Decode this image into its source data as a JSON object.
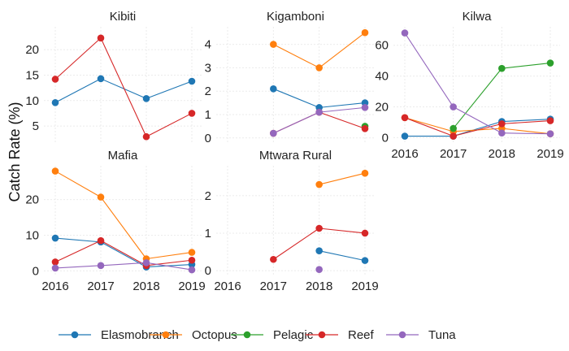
{
  "chart_data": {
    "type": "line",
    "layout": "facet-wrap",
    "ylabel": "Catch Rate (%)",
    "xlabel": "",
    "years": [
      2016,
      2017,
      2018,
      2019
    ],
    "grid": true,
    "legend_position": "bottom",
    "colors": {
      "Elasmobranch": "#1f77b4",
      "Octopus": "#ff7f0e",
      "Pelagic": "#2ca02c",
      "Reef": "#d62728",
      "Tuna": "#9467bd"
    },
    "legend": [
      "Elasmobranch",
      "Octopus",
      "Pelagic",
      "Reef",
      "Tuna"
    ],
    "panels": [
      {
        "title": "Kibiti",
        "ylim": [
          1.5,
          24.5
        ],
        "yticks": [
          5,
          10,
          15,
          20
        ],
        "series": [
          {
            "name": "Elasmobranch",
            "x": [
              2016,
              2017,
              2018,
              2019
            ],
            "y": [
              9.6,
              14.3,
              10.4,
              13.8
            ]
          },
          {
            "name": "Reef",
            "x": [
              2016,
              2017,
              2018,
              2019
            ],
            "y": [
              14.2,
              22.3,
              2.9,
              7.5
            ]
          }
        ]
      },
      {
        "title": "Kigamboni",
        "ylim": [
          -0.25,
          4.75
        ],
        "yticks": [
          0,
          1,
          2,
          3,
          4
        ],
        "series": [
          {
            "name": "Elasmobranch",
            "x": [
              2016,
              2017,
              2018,
              2019
            ],
            "y": [
              null,
              2.1,
              1.3,
              1.5
            ]
          },
          {
            "name": "Octopus",
            "x": [
              2016,
              2017,
              2018,
              2019
            ],
            "y": [
              null,
              4.0,
              3.0,
              4.5
            ]
          },
          {
            "name": "Pelagic",
            "x": [
              2016,
              2017,
              2018,
              2019
            ],
            "y": [
              null,
              null,
              null,
              0.5
            ]
          },
          {
            "name": "Reef",
            "x": [
              2016,
              2017,
              2018,
              2019
            ],
            "y": [
              null,
              0.2,
              1.1,
              0.4
            ]
          },
          {
            "name": "Tuna",
            "x": [
              2016,
              2017,
              2018,
              2019
            ],
            "y": [
              null,
              0.2,
              1.1,
              1.3
            ]
          }
        ]
      },
      {
        "title": "Kilwa",
        "ylim": [
          -4,
          72
        ],
        "yticks": [
          0,
          20,
          40,
          60
        ],
        "series": [
          {
            "name": "Elasmobranch",
            "x": [
              2016,
              2017,
              2018,
              2019
            ],
            "y": [
              1,
              1,
              10.5,
              12
            ]
          },
          {
            "name": "Octopus",
            "x": [
              2016,
              2017,
              2018,
              2019
            ],
            "y": [
              13,
              4,
              6,
              2.5
            ]
          },
          {
            "name": "Pelagic",
            "x": [
              2016,
              2017,
              2018,
              2019
            ],
            "y": [
              null,
              6,
              45,
              48.5
            ]
          },
          {
            "name": "Reef",
            "x": [
              2016,
              2017,
              2018,
              2019
            ],
            "y": [
              13,
              1,
              9,
              11
            ]
          },
          {
            "name": "Tuna",
            "x": [
              2016,
              2017,
              2018,
              2019
            ],
            "y": [
              68,
              20,
              3,
              2.5
            ]
          }
        ]
      },
      {
        "title": "Mafia",
        "ylim": [
          -1.5,
          29.5
        ],
        "yticks": [
          0,
          10,
          20
        ],
        "series": [
          {
            "name": "Elasmobranch",
            "x": [
              2016,
              2017,
              2018,
              2019
            ],
            "y": [
              9.2,
              8.1,
              1.1,
              1.8
            ]
          },
          {
            "name": "Octopus",
            "x": [
              2016,
              2017,
              2018,
              2019
            ],
            "y": [
              28,
              20.7,
              3.4,
              5.2
            ]
          },
          {
            "name": "Reef",
            "x": [
              2016,
              2017,
              2018,
              2019
            ],
            "y": [
              2.5,
              8.5,
              1.5,
              3
            ]
          },
          {
            "name": "Tuna",
            "x": [
              2016,
              2017,
              2018,
              2019
            ],
            "y": [
              0.8,
              1.5,
              2.3,
              0.3
            ]
          }
        ]
      },
      {
        "title": "Mtwara Rural",
        "ylim": [
          -0.15,
          2.8
        ],
        "yticks": [
          0,
          1,
          2
        ],
        "series": [
          {
            "name": "Elasmobranch",
            "x": [
              2016,
              2017,
              2018,
              2019
            ],
            "y": [
              null,
              null,
              0.53,
              0.27
            ]
          },
          {
            "name": "Octopus",
            "x": [
              2016,
              2017,
              2018,
              2019
            ],
            "y": [
              null,
              null,
              2.3,
              2.6
            ]
          },
          {
            "name": "Reef",
            "x": [
              2016,
              2017,
              2018,
              2019
            ],
            "y": [
              null,
              0.3,
              1.13,
              1.0
            ]
          },
          {
            "name": "Tuna",
            "x": [
              2016,
              2017,
              2018,
              2019
            ],
            "y": [
              null,
              null,
              0.03,
              null
            ]
          }
        ]
      }
    ]
  }
}
